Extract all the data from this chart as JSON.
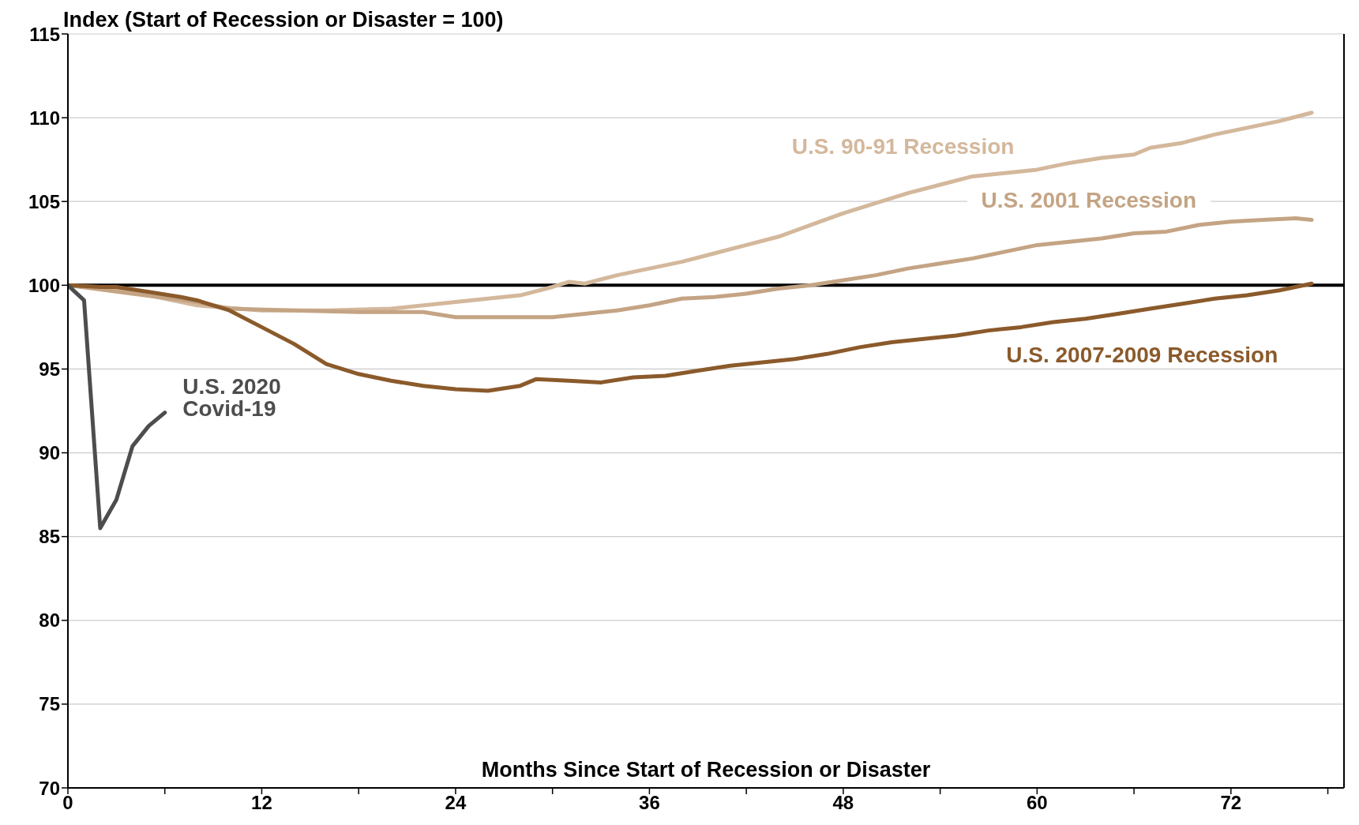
{
  "chart_data": {
    "type": "line",
    "title": "Index (Start of Recession or Disaster = 100)",
    "xlabel": "Months Since Start of Recession or Disaster",
    "xlim": [
      0,
      79
    ],
    "xticks": [
      0,
      {
        "value": 6,
        "label": null
      },
      12,
      {
        "value": 18,
        "label": null
      },
      24,
      {
        "value": 30,
        "label": null
      },
      36,
      {
        "value": 42,
        "label": null
      },
      48,
      {
        "value": 54,
        "label": null
      },
      60,
      {
        "value": 66,
        "label": null
      },
      72,
      {
        "value": 78,
        "label": null
      }
    ],
    "ylim": [
      70,
      115
    ],
    "yticks": [
      70,
      75,
      80,
      85,
      90,
      95,
      100,
      105,
      110,
      115
    ],
    "grid": "y",
    "marker": "none",
    "line_style": "solid",
    "ref_lines": [
      {
        "axis": "y",
        "value": 100,
        "color": "#000000"
      }
    ],
    "series": [
      {
        "name": "U.S. 90-91 Recession",
        "color": "#d4b89c",
        "x": [
          0,
          4,
          8,
          12,
          16,
          20,
          24,
          28,
          30,
          31,
          32,
          34,
          36,
          38,
          40,
          42,
          44,
          46,
          48,
          50,
          52,
          54,
          56,
          58,
          60,
          62,
          64,
          66,
          67,
          69,
          71,
          73,
          75,
          77
        ],
        "values": [
          100,
          99.6,
          98.8,
          98.5,
          98.5,
          98.6,
          99.0,
          99.4,
          99.9,
          100.2,
          100.1,
          100.6,
          101.0,
          101.4,
          101.9,
          102.4,
          102.9,
          103.6,
          104.3,
          104.9,
          105.5,
          106.0,
          106.5,
          106.7,
          106.9,
          107.3,
          107.6,
          107.8,
          108.2,
          108.5,
          109.0,
          109.4,
          109.8,
          110.3
        ]
      },
      {
        "name": "U.S. 2001 Recession",
        "color": "#c4a484",
        "x": [
          0,
          4,
          8,
          10,
          14,
          18,
          20,
          22,
          24,
          26,
          28,
          30,
          32,
          34,
          36,
          38,
          40,
          42,
          44,
          46,
          48,
          50,
          52,
          54,
          56,
          58,
          60,
          62,
          64,
          66,
          68,
          70,
          72,
          74,
          76,
          77
        ],
        "values": [
          100,
          99.5,
          99.0,
          98.6,
          98.5,
          98.4,
          98.4,
          98.4,
          98.1,
          98.1,
          98.1,
          98.1,
          98.3,
          98.5,
          98.8,
          99.2,
          99.3,
          99.5,
          99.8,
          100.0,
          100.3,
          100.6,
          101.0,
          101.3,
          101.6,
          102.0,
          102.4,
          102.6,
          102.8,
          103.1,
          103.2,
          103.6,
          103.8,
          103.9,
          104.0,
          103.9
        ]
      },
      {
        "name": "U.S. 2007-2009 Recession",
        "color": "#8b5a2b",
        "x": [
          0,
          2,
          3,
          5,
          7,
          8,
          10,
          12,
          14,
          16,
          18,
          20,
          22,
          24,
          26,
          28,
          29,
          31,
          33,
          35,
          37,
          39,
          41,
          43,
          45,
          47,
          49,
          51,
          53,
          55,
          57,
          59,
          61,
          63,
          65,
          67,
          69,
          71,
          73,
          75,
          77
        ],
        "values": [
          100,
          99.9,
          99.9,
          99.6,
          99.3,
          99.1,
          98.5,
          97.5,
          96.5,
          95.3,
          94.7,
          94.3,
          94.0,
          93.8,
          93.7,
          94.0,
          94.4,
          94.3,
          94.2,
          94.5,
          94.6,
          94.9,
          95.2,
          95.4,
          95.6,
          95.9,
          96.3,
          96.6,
          96.8,
          97.0,
          97.3,
          97.5,
          97.8,
          98.0,
          98.3,
          98.6,
          98.9,
          99.2,
          99.4,
          99.7,
          100.1
        ]
      },
      {
        "name": "U.S. 2020 Covid-19",
        "color": "#4d4d4d",
        "x": [
          0,
          1,
          2,
          3,
          4,
          5,
          6
        ],
        "values": [
          100,
          99.1,
          85.5,
          87.2,
          90.4,
          91.6,
          92.4
        ]
      }
    ]
  }
}
